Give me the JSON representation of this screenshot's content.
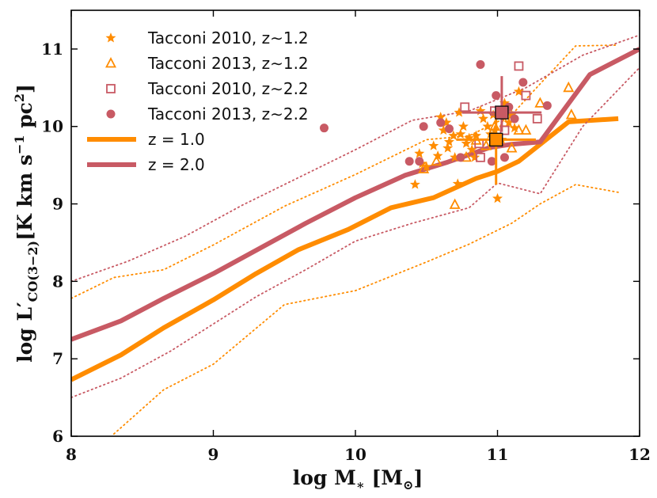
{
  "chart_data": {
    "type": "scatter",
    "xlabel": "log M∗ [M⊙]",
    "ylabel": "log L′CO(3−2) [K km s−1 pc2]",
    "xlim": [
      8,
      12
    ],
    "ylim": [
      6,
      11.5
    ],
    "xticks": [
      "8",
      "9",
      "10",
      "11",
      "12"
    ],
    "yticks": [
      "6",
      "7",
      "8",
      "9",
      "10",
      "11"
    ],
    "colors": {
      "z1": "#ff8c00",
      "z2": "#c85a64"
    },
    "legend_position": "top-left",
    "legend": [
      {
        "label": "Tacconi 2010, z∼1.2",
        "marker": "star",
        "color": "#ff8c00"
      },
      {
        "label": "Tacconi 2013, z∼1.2",
        "marker": "triangle",
        "color": "#ff8c00"
      },
      {
        "label": "Tacconi 2010, z∼2.2",
        "marker": "square",
        "color": "#c85a64"
      },
      {
        "label": "Tacconi 2013, z∼2.2",
        "marker": "circle",
        "color": "#c85a64"
      },
      {
        "label": "z = 1.0",
        "marker": "line",
        "color": "#ff8c00"
      },
      {
        "label": "z = 2.0",
        "marker": "line",
        "color": "#c85a64"
      }
    ],
    "lines": [
      {
        "name": "z = 1.0 median",
        "color": "#ff8c00",
        "style": "solid",
        "x": [
          8,
          8.35,
          8.65,
          9.0,
          9.3,
          9.6,
          9.95,
          10.25,
          10.55,
          10.85,
          11.0,
          11.15,
          11.5,
          11.85
        ],
        "y": [
          6.73,
          7.05,
          7.4,
          7.76,
          8.1,
          8.41,
          8.67,
          8.95,
          9.08,
          9.33,
          9.42,
          9.55,
          10.06,
          10.1
        ]
      },
      {
        "name": "z = 2.0 median",
        "color": "#c85a64",
        "style": "solid",
        "x": [
          8,
          8.35,
          8.65,
          9.0,
          9.3,
          9.65,
          10.0,
          10.35,
          10.65,
          10.95,
          11.1,
          11.3,
          11.65,
          12.0
        ],
        "y": [
          7.25,
          7.49,
          7.78,
          8.1,
          8.4,
          8.75,
          9.08,
          9.37,
          9.54,
          9.73,
          9.77,
          9.8,
          10.67,
          11.0
        ]
      },
      {
        "name": "z = 1.0 upper",
        "color": "#ff8c00",
        "style": "dotted",
        "x": [
          8,
          8.3,
          8.65,
          9.0,
          9.5,
          10.0,
          10.5,
          10.8,
          11.1,
          11.3,
          11.55,
          11.85
        ],
        "y": [
          7.78,
          8.05,
          8.15,
          8.47,
          8.97,
          9.38,
          9.83,
          9.88,
          10.15,
          10.55,
          11.04,
          11.05
        ]
      },
      {
        "name": "z = 1.0 lower",
        "color": "#ff8c00",
        "style": "dotted",
        "x": [
          8.3,
          8.65,
          9.0,
          9.5,
          10.0,
          10.5,
          10.8,
          11.1,
          11.3,
          11.55,
          11.85
        ],
        "y": [
          6.03,
          6.6,
          6.93,
          7.7,
          7.88,
          8.25,
          8.48,
          8.75,
          9.0,
          9.25,
          9.15
        ]
      },
      {
        "name": "z = 2.0 upper",
        "color": "#c85a64",
        "style": "dotted",
        "x": [
          8,
          8.4,
          8.8,
          9.2,
          9.6,
          10.0,
          10.4,
          10.8,
          11.2,
          11.6,
          12.0
        ],
        "y": [
          8.0,
          8.26,
          8.58,
          8.98,
          9.34,
          9.7,
          10.08,
          10.2,
          10.5,
          10.92,
          11.18
        ]
      },
      {
        "name": "z = 2.0 lower",
        "color": "#c85a64",
        "style": "dotted",
        "x": [
          8,
          8.35,
          8.7,
          9.0,
          9.3,
          9.65,
          10.0,
          10.4,
          10.8,
          11.0,
          11.3,
          11.6,
          12.0
        ],
        "y": [
          6.5,
          6.75,
          7.1,
          7.45,
          7.8,
          8.15,
          8.52,
          8.75,
          8.95,
          9.27,
          9.13,
          10.0,
          10.76
        ]
      }
    ],
    "series": [
      {
        "name": "Tacconi 2010, z∼1.2",
        "marker": "star",
        "color": "#ff8c00",
        "x": [
          10.42,
          10.45,
          10.47,
          10.5,
          10.55,
          10.58,
          10.62,
          10.65,
          10.66,
          10.69,
          10.7,
          10.72,
          10.74,
          10.76,
          10.78,
          10.8,
          10.82,
          10.84,
          10.85,
          10.88,
          10.9,
          10.93,
          10.95,
          10.97,
          10.98,
          11.0,
          11.03,
          11.05,
          11.08,
          11.1,
          11.12,
          11.15,
          10.6,
          10.64,
          10.73,
          10.99
        ],
        "y": [
          9.25,
          9.65,
          9.52,
          9.48,
          9.75,
          9.62,
          9.95,
          9.72,
          9.8,
          9.88,
          9.6,
          9.26,
          9.9,
          10.0,
          9.78,
          9.85,
          9.7,
          9.6,
          9.88,
          10.2,
          10.1,
          10.0,
          9.9,
          10.15,
          9.95,
          9.07,
          9.83,
          10.3,
          10.05,
          10.15,
          9.98,
          10.45,
          10.12,
          10.05,
          10.18,
          9.88
        ]
      },
      {
        "name": "Tacconi 2013, z∼1.2",
        "marker": "triangle",
        "color": "#ff8c00",
        "x": [
          10.48,
          10.57,
          10.7,
          10.78,
          10.85,
          10.92,
          10.98,
          11.05,
          11.1,
          11.15,
          11.2,
          11.3,
          11.5,
          11.52
        ],
        "y": [
          9.45,
          9.55,
          8.99,
          9.6,
          9.82,
          9.75,
          10.0,
          10.05,
          9.72,
          9.95,
          9.95,
          10.3,
          10.5,
          10.15
        ]
      },
      {
        "name": "Tacconi 2010, z∼2.2",
        "marker": "square",
        "color": "#c85a64",
        "x": [
          10.77,
          10.88,
          10.98,
          11.05,
          11.15,
          11.2,
          11.28,
          10.87
        ],
        "y": [
          10.25,
          9.6,
          10.2,
          9.95,
          10.78,
          10.4,
          10.1,
          9.78
        ]
      },
      {
        "name": "Tacconi 2013, z∼2.2",
        "marker": "circle",
        "color": "#c85a64",
        "x": [
          9.78,
          10.38,
          10.48,
          10.6,
          10.66,
          10.74,
          10.88,
          10.99,
          11.05,
          11.08,
          11.12,
          11.18,
          11.35,
          10.96,
          10.45
        ],
        "y": [
          9.98,
          9.55,
          10.0,
          10.05,
          9.97,
          9.6,
          10.8,
          10.4,
          9.6,
          10.25,
          10.1,
          10.57,
          10.27,
          9.55,
          9.55
        ]
      }
    ],
    "summary_points": [
      {
        "name": "z∼1.2 mean",
        "x": 10.99,
        "y": 9.83,
        "xerr": 0.28,
        "yerr_low": 0.58,
        "yerr_high": 0.35,
        "color": "#ff8c00"
      },
      {
        "name": "z∼2.2 mean",
        "x": 11.03,
        "y": 10.18,
        "xerr": 0.28,
        "yerr_low": 0.25,
        "yerr_high": 0.47,
        "color": "#c85a64"
      }
    ]
  }
}
